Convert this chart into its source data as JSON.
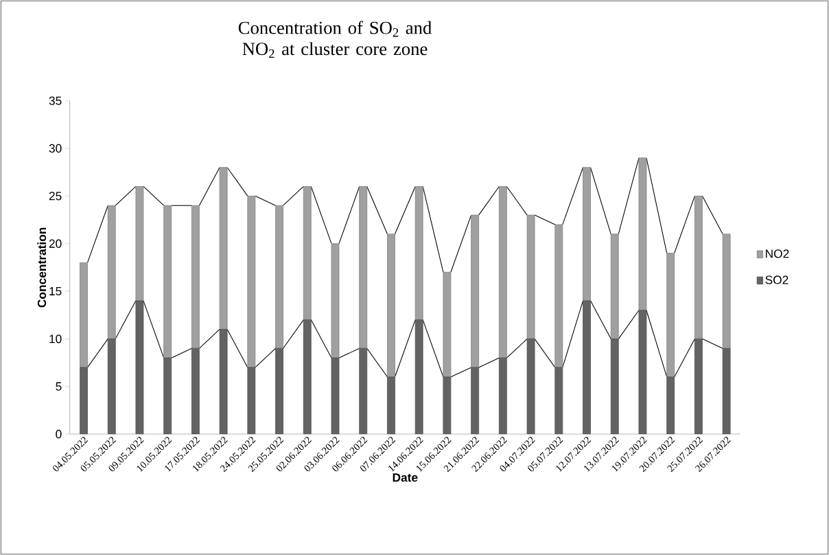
{
  "chart_data": {
    "type": "bar",
    "stacked": true,
    "title": "Concentration of SO$_{2}$ and NO$_{2}$ at cluster core zone",
    "xlabel": "Date",
    "ylabel": "Concentration",
    "categories": [
      "04.05.2022",
      "05.05.2022",
      "09.05.2022",
      "10.05.2022",
      "17.05.2022",
      "18.05.2022",
      "24.05.2022",
      "25.05.2022",
      "02.06.2022",
      "03.06.2022",
      "06.06.2022",
      "07.06.2022",
      "14.06.2022",
      "15.06.2022",
      "21.06.2022",
      "22.06.2022",
      "04.07.2022",
      "05.07.2022",
      "12.07.2022",
      "13.07.2022",
      "19.07.2022",
      "20.07.2022",
      "25.07.2022",
      "26.07.2022"
    ],
    "series": [
      {
        "name": "SO2",
        "color": "#636363",
        "values": [
          7,
          10,
          14,
          8,
          9,
          11,
          7,
          9,
          12,
          8,
          9,
          6,
          12,
          6,
          7,
          8,
          10,
          7,
          14,
          10,
          13,
          6,
          10,
          9
        ]
      },
      {
        "name": "NO2",
        "color": "#a0a0a0",
        "values": [
          11,
          14,
          12,
          16,
          15,
          17,
          18,
          15,
          14,
          12,
          17,
          15,
          14,
          11,
          16,
          18,
          13,
          15,
          14,
          11,
          16,
          13,
          15,
          12
        ]
      }
    ],
    "ylim": [
      0,
      35
    ],
    "yticks": [
      0,
      5,
      10,
      15,
      20,
      25,
      30,
      35
    ],
    "grid": false,
    "legend": "right"
  }
}
